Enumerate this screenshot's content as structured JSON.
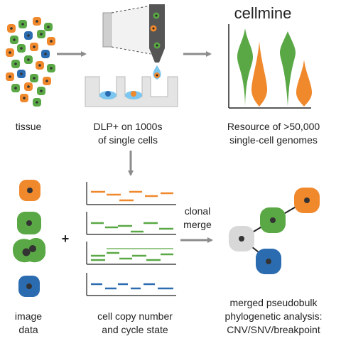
{
  "labels": {
    "tissue": "tissue",
    "dlp_line1": "DLP+ on 1000s",
    "dlp_line2": "of single cells",
    "cellmine_title": "cellmine",
    "resource_line1": "Resource of >50,000",
    "resource_line2": "single-cell genomes",
    "image_line1": "image",
    "image_line2": "data",
    "copy_line1": "cell copy number",
    "copy_line2": "and cycle state",
    "clonal_line1": "clonal",
    "clonal_line2": "merge",
    "plus": "+",
    "merged_line1": "merged pseudobulk",
    "merged_line2": "phylogenetic analysis:",
    "merged_line3": "CNV/SNV/breakpoint"
  },
  "colors": {
    "orange": "#f0882c",
    "green": "#5aa845",
    "blue": "#2b6cb0",
    "gray_cell": "#d8d8d8",
    "nucleus": "#333333",
    "arrow": "#8c8c8c"
  }
}
